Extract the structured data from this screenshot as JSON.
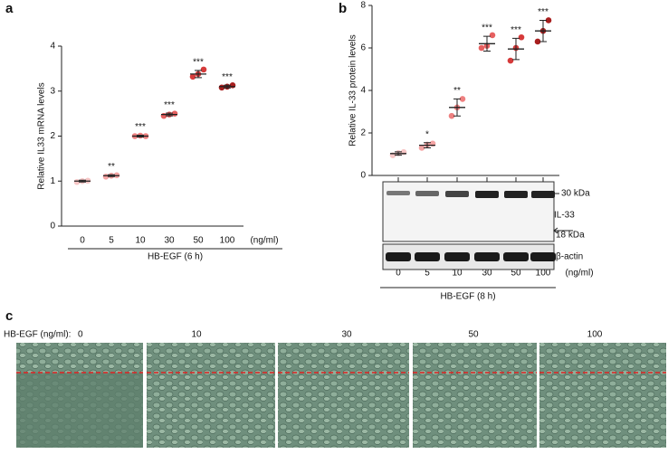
{
  "chart_data": [
    {
      "type": "dotplot",
      "panel": "a",
      "ylabel": "Relative IL33 mRNA levels",
      "categories": [
        "0",
        "5",
        "10",
        "30",
        "50",
        "100"
      ],
      "unit": "(ng/ml)",
      "xlabel": "HB-EGF (6 h)",
      "values": [
        1.0,
        1.12,
        2.0,
        2.48,
        3.38,
        3.1
      ],
      "errors": [
        0.02,
        0.02,
        0.02,
        0.03,
        0.08,
        0.03
      ],
      "points": [
        [
          0.98,
          1.0,
          1.01
        ],
        [
          1.1,
          1.12,
          1.13
        ],
        [
          2.0,
          2.01,
          2.0
        ],
        [
          2.45,
          2.48,
          2.5
        ],
        [
          3.32,
          3.38,
          3.48
        ],
        [
          3.08,
          3.1,
          3.13
        ]
      ],
      "annotations": [
        null,
        "**",
        "***",
        "***",
        "***",
        "***"
      ],
      "colors": [
        "#f7c6c6",
        "#f4a3a3",
        "#ee8080",
        "#e66060",
        "#d63a3a",
        "#a81e1e"
      ],
      "ylim": [
        0,
        4
      ],
      "yticks": [
        0,
        1,
        2,
        3,
        4
      ]
    },
    {
      "type": "dotplot",
      "panel": "b",
      "ylabel": "Relative IL-33 protein levels",
      "categories": [
        "0",
        "5",
        "10",
        "30",
        "50",
        "100"
      ],
      "unit": "(ng/ml)",
      "xlabel": "HB-EGF (8 h)",
      "values": [
        1.03,
        1.42,
        3.2,
        6.2,
        5.95,
        6.8
      ],
      "errors": [
        0.08,
        0.12,
        0.4,
        0.35,
        0.5,
        0.5
      ],
      "points": [
        [
          0.95,
          1.05,
          1.1
        ],
        [
          1.3,
          1.45,
          1.5
        ],
        [
          2.8,
          3.2,
          3.6
        ],
        [
          6.0,
          6.1,
          6.6
        ],
        [
          5.4,
          6.0,
          6.5
        ],
        [
          6.3,
          6.8,
          7.3
        ]
      ],
      "annotations": [
        null,
        "*",
        "**",
        "***",
        "***",
        "***"
      ],
      "colors": [
        "#f7c6c6",
        "#f4a3a3",
        "#ee8080",
        "#e66060",
        "#d63a3a",
        "#a81e1e"
      ],
      "ylim": [
        0,
        8
      ],
      "yticks": [
        0,
        2,
        4,
        6,
        8
      ],
      "blot": {
        "marker_high": "30 kDa",
        "protein": "IL-33",
        "marker_low": "18 kDa",
        "control": "β-actin"
      }
    }
  ],
  "panel_c": {
    "label": "c",
    "prefix": "HB-EGF (ng/ml):",
    "doses": [
      "0",
      "10",
      "30",
      "50",
      "100"
    ]
  }
}
